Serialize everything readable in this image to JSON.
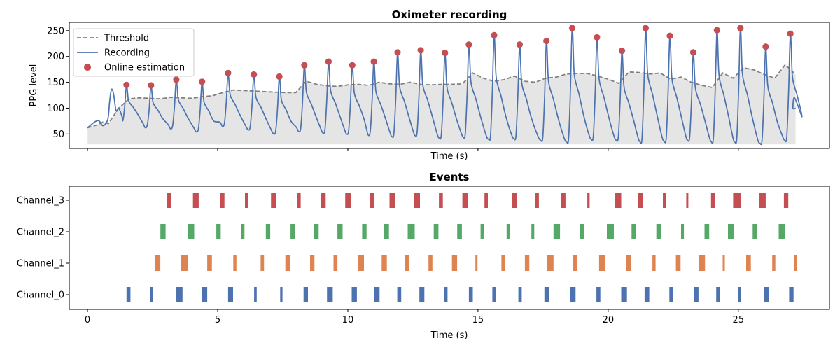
{
  "colors": {
    "threshold": "#808080",
    "recording": "#4c72b0",
    "estimation": "#c44e52",
    "fill": "#e5e5e5",
    "channels": [
      "#4c72b0",
      "#dd8452",
      "#55a868",
      "#c44e52"
    ]
  },
  "chart_data": [
    {
      "type": "line",
      "title": "Oximeter recording",
      "xlabel": "Time (s)",
      "ylabel": "PPG level",
      "xlim": [
        -0.7,
        28.5
      ],
      "ylim": [
        22,
        266
      ],
      "xticks": [
        0,
        5,
        10,
        15,
        20,
        25
      ],
      "xtick_labels_visible": false,
      "yticks": [
        50,
        100,
        150,
        200,
        250
      ],
      "ytick_labels": [
        "50",
        "100",
        "150",
        "200",
        "250"
      ],
      "legend": {
        "position": "top-left",
        "entries": [
          "Threshold",
          "Recording",
          "Online estimation"
        ]
      },
      "fill_between": {
        "from": "threshold",
        "to": "recording",
        "baseline": 30
      },
      "series": [
        {
          "name": "Recording",
          "style": "solid",
          "color": "recording",
          "start": {
            "x": 0.0,
            "y": 62
          },
          "end": {
            "x": 27.2,
            "y": 100
          },
          "beats": [
            {
              "t": 1.5,
              "peak": 145,
              "trough": 70
            },
            {
              "t": 2.44,
              "peak": 144,
              "trough": 62
            },
            {
              "t": 3.41,
              "peak": 155,
              "trough": 60
            },
            {
              "t": 4.4,
              "peak": 151,
              "trough": 54
            },
            {
              "t": 5.4,
              "peak": 168,
              "trough": 65
            },
            {
              "t": 6.39,
              "peak": 165,
              "trough": 58
            },
            {
              "t": 7.37,
              "peak": 161,
              "trough": 50
            },
            {
              "t": 8.33,
              "peak": 183,
              "trough": 55
            },
            {
              "t": 9.26,
              "peak": 190,
              "trough": 52
            },
            {
              "t": 10.17,
              "peak": 183,
              "trough": 50
            },
            {
              "t": 11.0,
              "peak": 190,
              "trough": 48
            },
            {
              "t": 11.91,
              "peak": 208,
              "trough": 45
            },
            {
              "t": 12.8,
              "peak": 212,
              "trough": 47
            },
            {
              "t": 13.73,
              "peak": 207,
              "trough": 42
            },
            {
              "t": 14.65,
              "peak": 223,
              "trough": 44
            },
            {
              "t": 15.62,
              "peak": 241,
              "trough": 40
            },
            {
              "t": 16.6,
              "peak": 223,
              "trough": 41
            },
            {
              "t": 17.63,
              "peak": 230,
              "trough": 38
            },
            {
              "t": 18.62,
              "peak": 255,
              "trough": 35
            },
            {
              "t": 19.57,
              "peak": 237,
              "trough": 40
            },
            {
              "t": 20.53,
              "peak": 211,
              "trough": 38
            },
            {
              "t": 21.44,
              "peak": 255,
              "trough": 35
            },
            {
              "t": 22.37,
              "peak": 240,
              "trough": 36
            },
            {
              "t": 23.27,
              "peak": 208,
              "trough": 38
            },
            {
              "t": 24.18,
              "peak": 251,
              "trough": 35
            },
            {
              "t": 25.08,
              "peak": 255,
              "trough": 35
            },
            {
              "t": 26.05,
              "peak": 219,
              "trough": 32
            },
            {
              "t": 27.0,
              "peak": 244,
              "trough": 38
            }
          ]
        },
        {
          "name": "Threshold",
          "style": "dashed",
          "color": "threshold",
          "x": [
            0.0,
            0.4,
            0.6,
            0.8,
            1.2,
            1.6,
            2.0,
            2.4,
            2.8,
            3.2,
            3.6,
            4.0,
            4.4,
            4.8,
            5.2,
            5.6,
            6.0,
            6.4,
            6.8,
            7.2,
            7.6,
            8.0,
            8.4,
            8.8,
            9.2,
            9.6,
            10.0,
            10.4,
            10.8,
            11.2,
            11.6,
            12.0,
            12.4,
            12.8,
            13.2,
            13.6,
            14.0,
            14.4,
            14.8,
            15.2,
            15.6,
            16.0,
            16.4,
            16.8,
            17.2,
            17.6,
            18.0,
            18.4,
            18.8,
            19.2,
            19.6,
            20.0,
            20.4,
            20.8,
            21.2,
            21.6,
            22.0,
            22.4,
            22.8,
            23.2,
            23.6,
            24.0,
            24.4,
            24.8,
            25.2,
            25.6,
            26.0,
            26.4,
            26.8,
            27.2
          ],
          "y": [
            62,
            68,
            73,
            70,
            100,
            118,
            120,
            119,
            118,
            121,
            120,
            119,
            122,
            124,
            130,
            135,
            134,
            133,
            132,
            131,
            130,
            130,
            152,
            146,
            143,
            142,
            145,
            146,
            144,
            150,
            147,
            146,
            150,
            146,
            145,
            146,
            146,
            147,
            168,
            158,
            152,
            155,
            162,
            152,
            150,
            158,
            160,
            166,
            167,
            167,
            162,
            156,
            148,
            170,
            169,
            166,
            168,
            156,
            160,
            150,
            144,
            140,
            168,
            158,
            178,
            174,
            165,
            158,
            184,
            165
          ]
        },
        {
          "name": "Online estimation",
          "style": "markers",
          "color": "estimation",
          "x": [
            1.5,
            2.44,
            3.41,
            4.4,
            5.4,
            6.39,
            7.37,
            8.33,
            9.26,
            10.17,
            11.0,
            11.91,
            12.8,
            13.73,
            14.65,
            15.62,
            16.6,
            17.63,
            18.62,
            19.57,
            20.53,
            21.44,
            22.37,
            23.27,
            24.18,
            25.08,
            26.05,
            27.0
          ],
          "y": [
            145,
            144,
            155,
            151,
            168,
            165,
            161,
            183,
            190,
            183,
            190,
            208,
            212,
            207,
            223,
            241,
            223,
            230,
            255,
            237,
            211,
            255,
            240,
            208,
            251,
            255,
            219,
            244
          ]
        }
      ]
    },
    {
      "type": "event-raster",
      "title": "Events",
      "xlabel": "Time (s)",
      "xlim": [
        -0.7,
        28.5
      ],
      "xticks": [
        0,
        5,
        10,
        15,
        20,
        25
      ],
      "xtick_labels": [
        "0",
        "5",
        "10",
        "15",
        "20",
        "25"
      ],
      "channels": [
        "Channel_3",
        "Channel_2",
        "Channel_1",
        "Channel_0"
      ],
      "events": {
        "Channel_3": [
          [
            3.05,
            3.2
          ],
          [
            4.05,
            4.27
          ],
          [
            5.1,
            5.26
          ],
          [
            6.05,
            6.17
          ],
          [
            7.05,
            7.25
          ],
          [
            8.05,
            8.19
          ],
          [
            8.98,
            9.15
          ],
          [
            9.9,
            10.12
          ],
          [
            10.85,
            11.02
          ],
          [
            11.6,
            11.82
          ],
          [
            12.55,
            12.77
          ],
          [
            13.5,
            13.65
          ],
          [
            14.4,
            14.62
          ],
          [
            15.25,
            15.38
          ],
          [
            16.3,
            16.48
          ],
          [
            17.2,
            17.34
          ],
          [
            18.2,
            18.36
          ],
          [
            19.2,
            19.29
          ],
          [
            20.25,
            20.5
          ],
          [
            21.15,
            21.33
          ],
          [
            22.1,
            22.23
          ],
          [
            23.0,
            23.08
          ],
          [
            23.95,
            24.1
          ],
          [
            24.8,
            25.1
          ],
          [
            25.8,
            26.05
          ],
          [
            26.75,
            26.92
          ]
        ],
        "Channel_2": [
          [
            2.8,
            3.0
          ],
          [
            3.85,
            4.1
          ],
          [
            4.95,
            5.12
          ],
          [
            5.9,
            6.03
          ],
          [
            6.85,
            7.02
          ],
          [
            7.8,
            7.98
          ],
          [
            8.7,
            8.88
          ],
          [
            9.6,
            9.8
          ],
          [
            10.55,
            10.72
          ],
          [
            11.4,
            11.58
          ],
          [
            12.3,
            12.57
          ],
          [
            13.3,
            13.48
          ],
          [
            14.2,
            14.38
          ],
          [
            15.1,
            15.24
          ],
          [
            16.1,
            16.24
          ],
          [
            17.05,
            17.16
          ],
          [
            17.9,
            18.15
          ],
          [
            18.9,
            19.08
          ],
          [
            19.95,
            20.22
          ],
          [
            20.9,
            21.07
          ],
          [
            21.85,
            22.04
          ],
          [
            22.8,
            22.91
          ],
          [
            23.7,
            23.88
          ],
          [
            24.6,
            24.82
          ],
          [
            25.55,
            25.73
          ],
          [
            26.55,
            26.8
          ]
        ],
        "Channel_1": [
          [
            2.6,
            2.8
          ],
          [
            3.6,
            3.85
          ],
          [
            4.6,
            4.78
          ],
          [
            5.6,
            5.72
          ],
          [
            6.65,
            6.78
          ],
          [
            7.6,
            7.78
          ],
          [
            8.55,
            8.72
          ],
          [
            9.45,
            9.6
          ],
          [
            10.4,
            10.62
          ],
          [
            11.3,
            11.5
          ],
          [
            12.2,
            12.34
          ],
          [
            13.1,
            13.25
          ],
          [
            14.0,
            14.2
          ],
          [
            14.9,
            14.98
          ],
          [
            15.9,
            16.05
          ],
          [
            16.8,
            16.97
          ],
          [
            17.65,
            17.9
          ],
          [
            18.65,
            18.8
          ],
          [
            19.65,
            19.87
          ],
          [
            20.7,
            20.88
          ],
          [
            21.7,
            21.82
          ],
          [
            22.6,
            22.78
          ],
          [
            23.5,
            23.72
          ],
          [
            24.4,
            24.48
          ],
          [
            25.3,
            25.48
          ],
          [
            26.3,
            26.42
          ],
          [
            27.15,
            27.24
          ]
        ],
        "Channel_0": [
          [
            1.5,
            1.65
          ],
          [
            2.4,
            2.5
          ],
          [
            3.4,
            3.65
          ],
          [
            4.4,
            4.6
          ],
          [
            5.4,
            5.59
          ],
          [
            6.4,
            6.5
          ],
          [
            7.4,
            7.49
          ],
          [
            8.3,
            8.47
          ],
          [
            9.2,
            9.42
          ],
          [
            10.15,
            10.35
          ],
          [
            11.0,
            11.22
          ],
          [
            11.9,
            12.05
          ],
          [
            12.75,
            12.94
          ],
          [
            13.7,
            13.83
          ],
          [
            14.65,
            14.8
          ],
          [
            15.55,
            15.7
          ],
          [
            16.55,
            16.68
          ],
          [
            17.55,
            17.72
          ],
          [
            18.55,
            18.75
          ],
          [
            19.55,
            19.7
          ],
          [
            20.5,
            20.72
          ],
          [
            21.4,
            21.58
          ],
          [
            22.35,
            22.48
          ],
          [
            23.3,
            23.47
          ],
          [
            24.15,
            24.3
          ],
          [
            25.0,
            25.1
          ],
          [
            26.0,
            26.16
          ],
          [
            26.95,
            27.12
          ]
        ]
      }
    }
  ]
}
